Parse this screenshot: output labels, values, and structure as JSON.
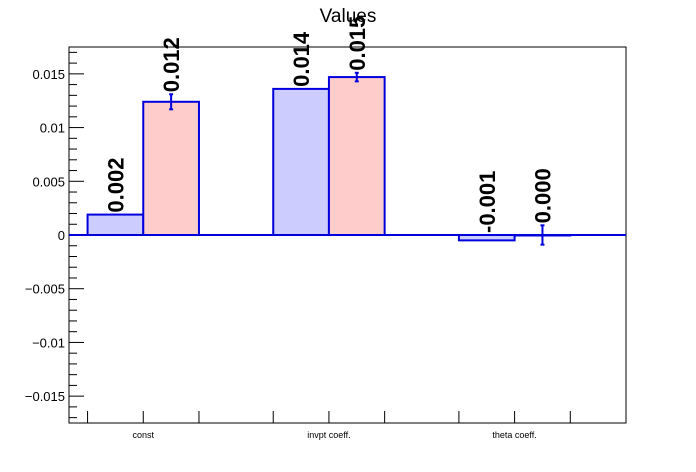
{
  "chart_data": {
    "type": "bar",
    "title": "Values",
    "xlabel": "",
    "ylabel": "",
    "categories": [
      "const",
      "invpt coeff.",
      "theta coeff."
    ],
    "ylim": [
      -0.0175,
      0.0175
    ],
    "yticks": [
      -0.015,
      -0.01,
      -0.005,
      0,
      0.005,
      0.01,
      0.015
    ],
    "ytick_labels": [
      "−0.015",
      "−0.01",
      "−0.005",
      "0",
      "0.005",
      "0.01",
      "0.015"
    ],
    "grid": false,
    "series": [
      {
        "values": [
          0.0019,
          0.0136,
          -0.0005
        ],
        "errors": [
          0,
          0,
          0
        ],
        "labels": [
          "0.002",
          "0.014",
          "-0.001"
        ],
        "fill": "#ccccff",
        "stroke": "#0000dd"
      },
      {
        "values": [
          0.0124,
          0.0147,
          0.0
        ],
        "errors": [
          0.0007,
          0.0004,
          0.0009
        ],
        "labels": [
          "0.012",
          "0.015",
          "0.000"
        ],
        "fill": "#ffcccc",
        "stroke": "#0000dd"
      }
    ]
  }
}
